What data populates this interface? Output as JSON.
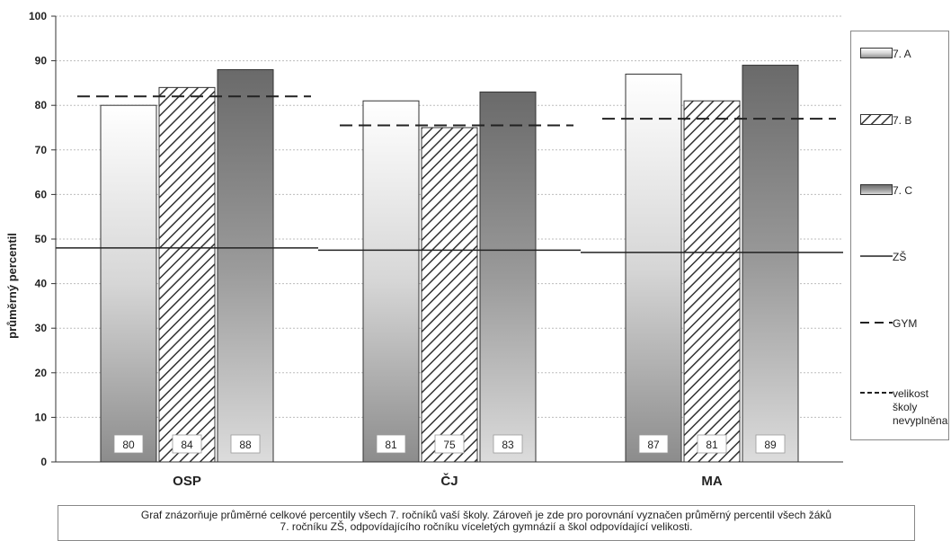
{
  "chart_data": {
    "type": "bar",
    "categories": [
      "OSP",
      "ČJ",
      "MA"
    ],
    "series": [
      {
        "name": "7. A",
        "values": [
          80,
          81,
          87
        ]
      },
      {
        "name": "7. B",
        "values": [
          84,
          75,
          81
        ]
      },
      {
        "name": "7. C",
        "values": [
          88,
          83,
          89
        ]
      }
    ],
    "reference_lines": [
      {
        "name": "ZŠ",
        "style": "solid",
        "values": [
          48,
          47.5,
          47
        ]
      },
      {
        "name": "GYM",
        "style": "dashed",
        "values": [
          82,
          75.5,
          77
        ]
      }
    ],
    "extra_legend": {
      "name": "velikost\nškoly\nnevyplněna",
      "style": "short-dashed"
    },
    "ylabel": "průměrný percentil",
    "ylim": [
      0,
      100
    ],
    "yticks": [
      "0",
      "10",
      "20",
      "30",
      "40",
      "50",
      "60",
      "70",
      "80",
      "90",
      "100"
    ],
    "grid": true,
    "legend_position": "right",
    "colors": {
      "7. A": "#e8e8e8",
      "7. B": "#ffffff",
      "7. C": "#7a7a7a"
    }
  },
  "caption": {
    "line1": "Graf znázorňuje průměrné celkové percentily všech 7. ročníků vaší školy. Zároveň je zde pro porovnání vyznačen průměrný percentil všech žáků",
    "line2": "7. ročníku ZŠ, odpovídajícího ročníku víceletých gymnázií a škol odpovídající velikosti."
  }
}
